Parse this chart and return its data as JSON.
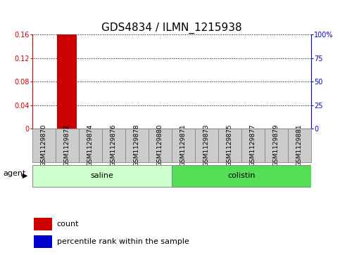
{
  "title": "GDS4834 / ILMN_1215938",
  "samples": [
    "GSM1129870",
    "GSM1129872",
    "GSM1129874",
    "GSM1129876",
    "GSM1129878",
    "GSM1129880",
    "GSM1129871",
    "GSM1129873",
    "GSM1129875",
    "GSM1129877",
    "GSM1129879",
    "GSM1129881"
  ],
  "count_values": [
    0.0,
    0.16,
    0.0,
    0.0,
    0.0,
    0.0,
    0.0,
    0.0,
    0.0,
    0.0,
    0.0,
    0.0
  ],
  "percentile_values": [
    0.0,
    1.0,
    0.0,
    0.0,
    0.0,
    0.0,
    0.0,
    0.0,
    0.0,
    0.0,
    0.0,
    0.0
  ],
  "ylim_left": [
    0,
    0.16
  ],
  "ylim_right": [
    0,
    100
  ],
  "yticks_left": [
    0,
    0.04,
    0.08,
    0.12,
    0.16
  ],
  "ytick_labels_left": [
    "0",
    "0.04",
    "0.08",
    "0.12",
    "0.16"
  ],
  "yticks_right": [
    0,
    25,
    50,
    75,
    100
  ],
  "ytick_labels_right": [
    "0",
    "25",
    "50",
    "75",
    "100%"
  ],
  "bar_color_count": "#cc0000",
  "bar_color_percentile": "#0000cc",
  "groups": [
    {
      "label": "saline",
      "start": 0,
      "end": 6,
      "color": "#ccffcc"
    },
    {
      "label": "colistin",
      "start": 6,
      "end": 12,
      "color": "#55dd55"
    }
  ],
  "agent_label": "agent",
  "legend_count_label": "count",
  "legend_percentile_label": "percentile rank within the sample",
  "bg_color": "#ffffff",
  "cell_bg_color": "#cccccc",
  "cell_border_color": "#888888",
  "title_fontsize": 11,
  "tick_fontsize": 7,
  "sample_fontsize": 6.5,
  "label_fontsize": 8,
  "legend_fontsize": 8
}
